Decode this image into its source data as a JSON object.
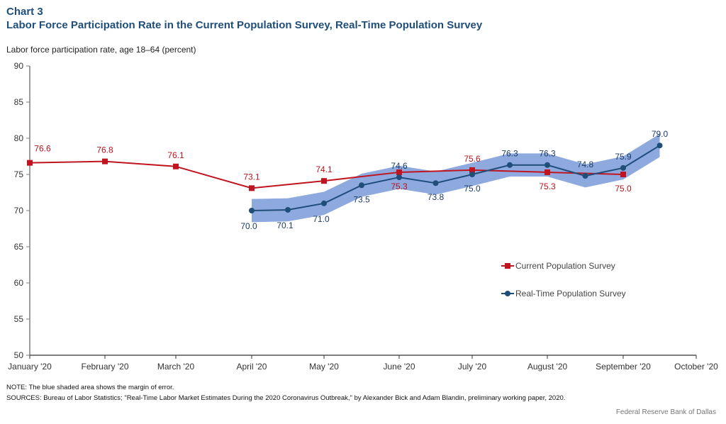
{
  "header": {
    "chart_number": "Chart 3",
    "title": "Labor Force Participation Rate in the Current Population Survey, Real-Time Population Survey",
    "y_axis_caption": "Labor force participation rate, age 18–64 (percent)"
  },
  "footer": {
    "note": "NOTE: The blue shaded area shows the margin of error.",
    "sources": "SOURCES: Bureau of Labor Statistics; \"Real-Time Labor Market Estimates During the 2020 Coronavirus Outbreak,\" by Alexander Bick and Adam Blandin, preliminary working paper, 2020.",
    "credit": "Federal Reserve Bank of Dallas"
  },
  "colors": {
    "cps": "#c0141f",
    "rtps": "#1f4e79",
    "band": "#7a9ad8",
    "axis": "#7f7f7f"
  },
  "chart_data": {
    "type": "line",
    "title": "Labor Force Participation Rate in the Current Population Survey, Real-Time Population Survey",
    "xlabel": "",
    "ylabel": "Labor force participation rate, age 18–64 (percent)",
    "ylim": [
      50,
      90
    ],
    "yticks": [
      50,
      55,
      60,
      65,
      70,
      75,
      80,
      85,
      90
    ],
    "xlim": [
      0,
      9
    ],
    "x_tick_positions": [
      0,
      1,
      2,
      3,
      4,
      5,
      6,
      7,
      8,
      9
    ],
    "x_tick_labels": [
      "January '20",
      "February '20",
      "March '20",
      "April '20",
      "May '20",
      "June '20",
      "July '20",
      "August '20",
      "September '20",
      "October '20"
    ],
    "grid": false,
    "legend_position": "right-middle",
    "series": [
      {
        "name": "Current Population Survey",
        "marker": "square",
        "x": [
          0,
          1,
          2,
          3,
          4,
          5,
          6,
          7,
          8
        ],
        "values": [
          76.6,
          76.8,
          76.1,
          73.1,
          74.1,
          75.3,
          75.6,
          75.3,
          75.0
        ],
        "labels": [
          "76.6",
          "76.8",
          "76.1",
          "73.1",
          "74.1",
          "75.3",
          "75.6",
          "75.3",
          "75.0"
        ],
        "label_side": [
          "above",
          "above",
          "above",
          "above",
          "above",
          "below",
          "above",
          "below",
          "below"
        ]
      },
      {
        "name": "Real-Time Population Survey",
        "marker": "circle",
        "x": [
          3,
          3.5,
          4,
          4.5,
          5,
          5.5,
          6,
          6.5,
          7,
          7.5,
          8,
          8.5
        ],
        "values": [
          70.0,
          70.1,
          71.0,
          73.5,
          74.6,
          73.8,
          75.0,
          76.3,
          76.3,
          74.8,
          75.9,
          79.0
        ],
        "labels": [
          "70.0",
          "70.1",
          "71.0",
          "73.5",
          "74.6",
          "73.8",
          "75.0",
          "76.3",
          "76.3",
          "74.8",
          "75.9",
          "79.0"
        ],
        "label_side": [
          "below",
          "below",
          "below",
          "below",
          "above",
          "below",
          "below",
          "above",
          "above",
          "above",
          "above",
          "above"
        ],
        "margin_of_error": 1.6
      }
    ],
    "annotations": [
      "The blue shaded area shows the margin of error."
    ]
  }
}
